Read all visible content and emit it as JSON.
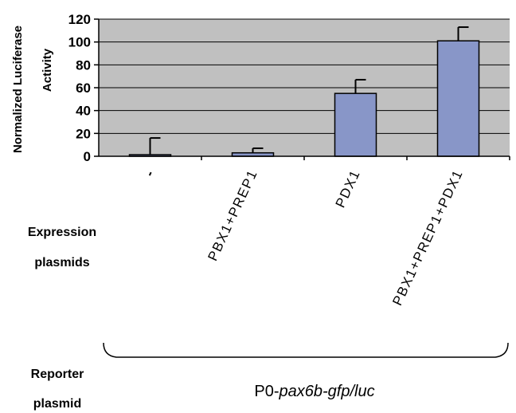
{
  "chart_data": {
    "type": "bar",
    "ylabel_lines": [
      "Normalized Luciferase",
      "Activity"
    ],
    "ylim": [
      0,
      120
    ],
    "yticks": [
      "0",
      "20",
      "40",
      "60",
      "80",
      "100",
      "120"
    ],
    "categories": [
      "-",
      "PBX1+PREP1",
      "PDX1",
      "PBX1+PREP1+PDX1"
    ],
    "values": [
      1,
      3,
      55,
      101
    ],
    "errors": [
      15,
      4,
      12,
      12
    ],
    "grid": true,
    "colors": {
      "plot_background": "#c0c0c0",
      "bar_fill": "#8896c8",
      "bar_stroke": "#000000",
      "gridline": "#000000"
    }
  },
  "labels": {
    "expression_line1": "Expression",
    "expression_line2": "plasmids",
    "reporter_line1": "Reporter",
    "reporter_line2": "plasmid",
    "reporter_prefix": "P0-",
    "reporter_gene": "pax6b-gfp",
    "reporter_suffix": "/luc"
  }
}
